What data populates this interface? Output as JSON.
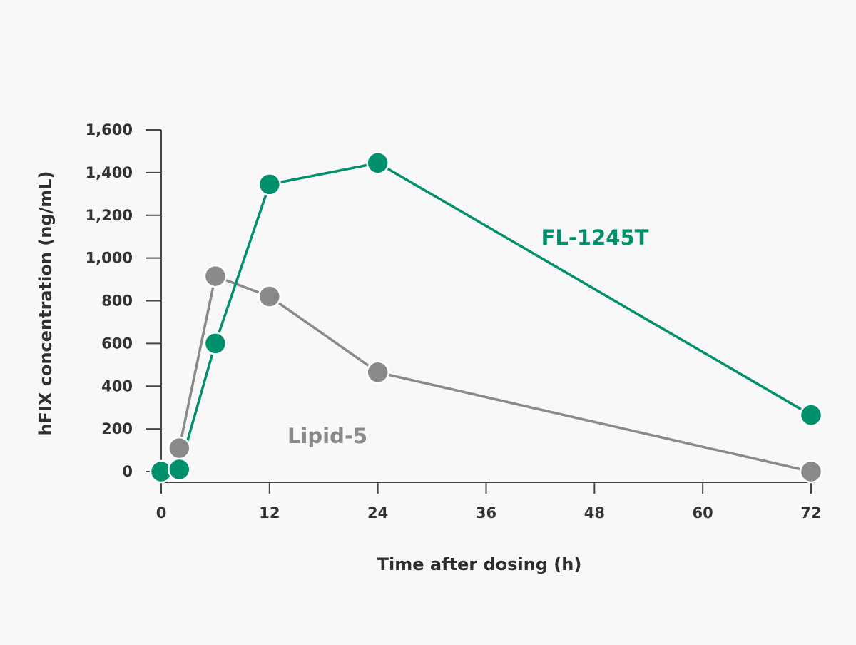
{
  "chart_data": {
    "type": "line",
    "title": "",
    "xlabel": "Time after dosing (h)",
    "ylabel": "hFIX concentration (ng/mL)",
    "xlim": [
      0,
      72
    ],
    "ylim": [
      0,
      1600
    ],
    "xticks": [
      0,
      12,
      24,
      36,
      48,
      60,
      72
    ],
    "yticks": [
      0,
      200,
      400,
      600,
      800,
      1000,
      1200,
      1400,
      1600
    ],
    "ytick_labels": [
      "0",
      "200",
      "400",
      "600",
      "800",
      "1,000",
      "1,200",
      "1,400",
      "1,600"
    ],
    "grid": false,
    "legend": "none (series labeled directly on chart)",
    "series": [
      {
        "name": "Lipid-5",
        "color": "#8a8a8a",
        "x": [
          2,
          6,
          12,
          24,
          72
        ],
        "y": [
          110,
          915,
          820,
          465,
          0
        ]
      },
      {
        "name": "FL-1245T",
        "color": "#00906b",
        "x": [
          0,
          2,
          6,
          12,
          24,
          72
        ],
        "y": [
          0,
          10,
          600,
          1345,
          1445,
          265
        ]
      }
    ]
  }
}
